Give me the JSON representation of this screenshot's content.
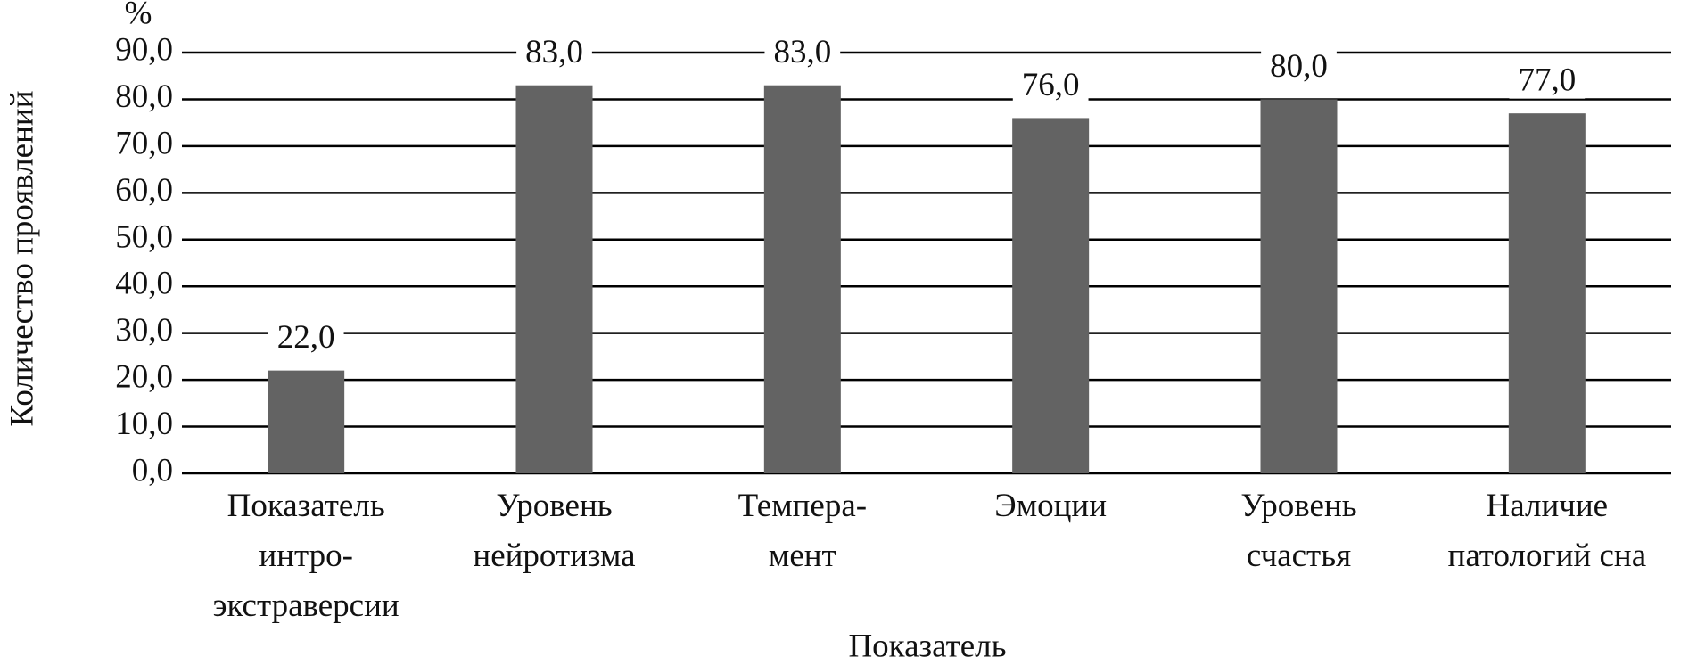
{
  "chart_data": {
    "type": "bar",
    "y_label": "Количество проявлений",
    "y_unit": "%",
    "x_label": "Показатель",
    "categories": [
      "Показатель\nинтро-\nэкстраверсии",
      "Уровень\nнейротизма",
      "Темпера-\nмент",
      "Эмоции",
      "Уровень\nсчастья",
      "Наличие\nпатологий сна"
    ],
    "values": [
      22,
      83,
      83,
      76,
      80,
      77
    ],
    "value_labels": [
      "22,0",
      "83,0",
      "83,0",
      "76,0",
      "80,0",
      "77,0"
    ],
    "color": "#636363",
    "ylim": [
      0,
      90
    ],
    "yticks": [
      {
        "value": 0,
        "label": "0,0"
      },
      {
        "value": 10,
        "label": "10,0"
      },
      {
        "value": 20,
        "label": "20,0"
      },
      {
        "value": 30,
        "label": "30,0"
      },
      {
        "value": 40,
        "label": "40,0"
      },
      {
        "value": 50,
        "label": "50,0"
      },
      {
        "value": 60,
        "label": "60,0"
      },
      {
        "value": 70,
        "label": "70,0"
      },
      {
        "value": 80,
        "label": "80,0"
      },
      {
        "value": 90,
        "label": "90,0"
      }
    ],
    "grid": true
  }
}
